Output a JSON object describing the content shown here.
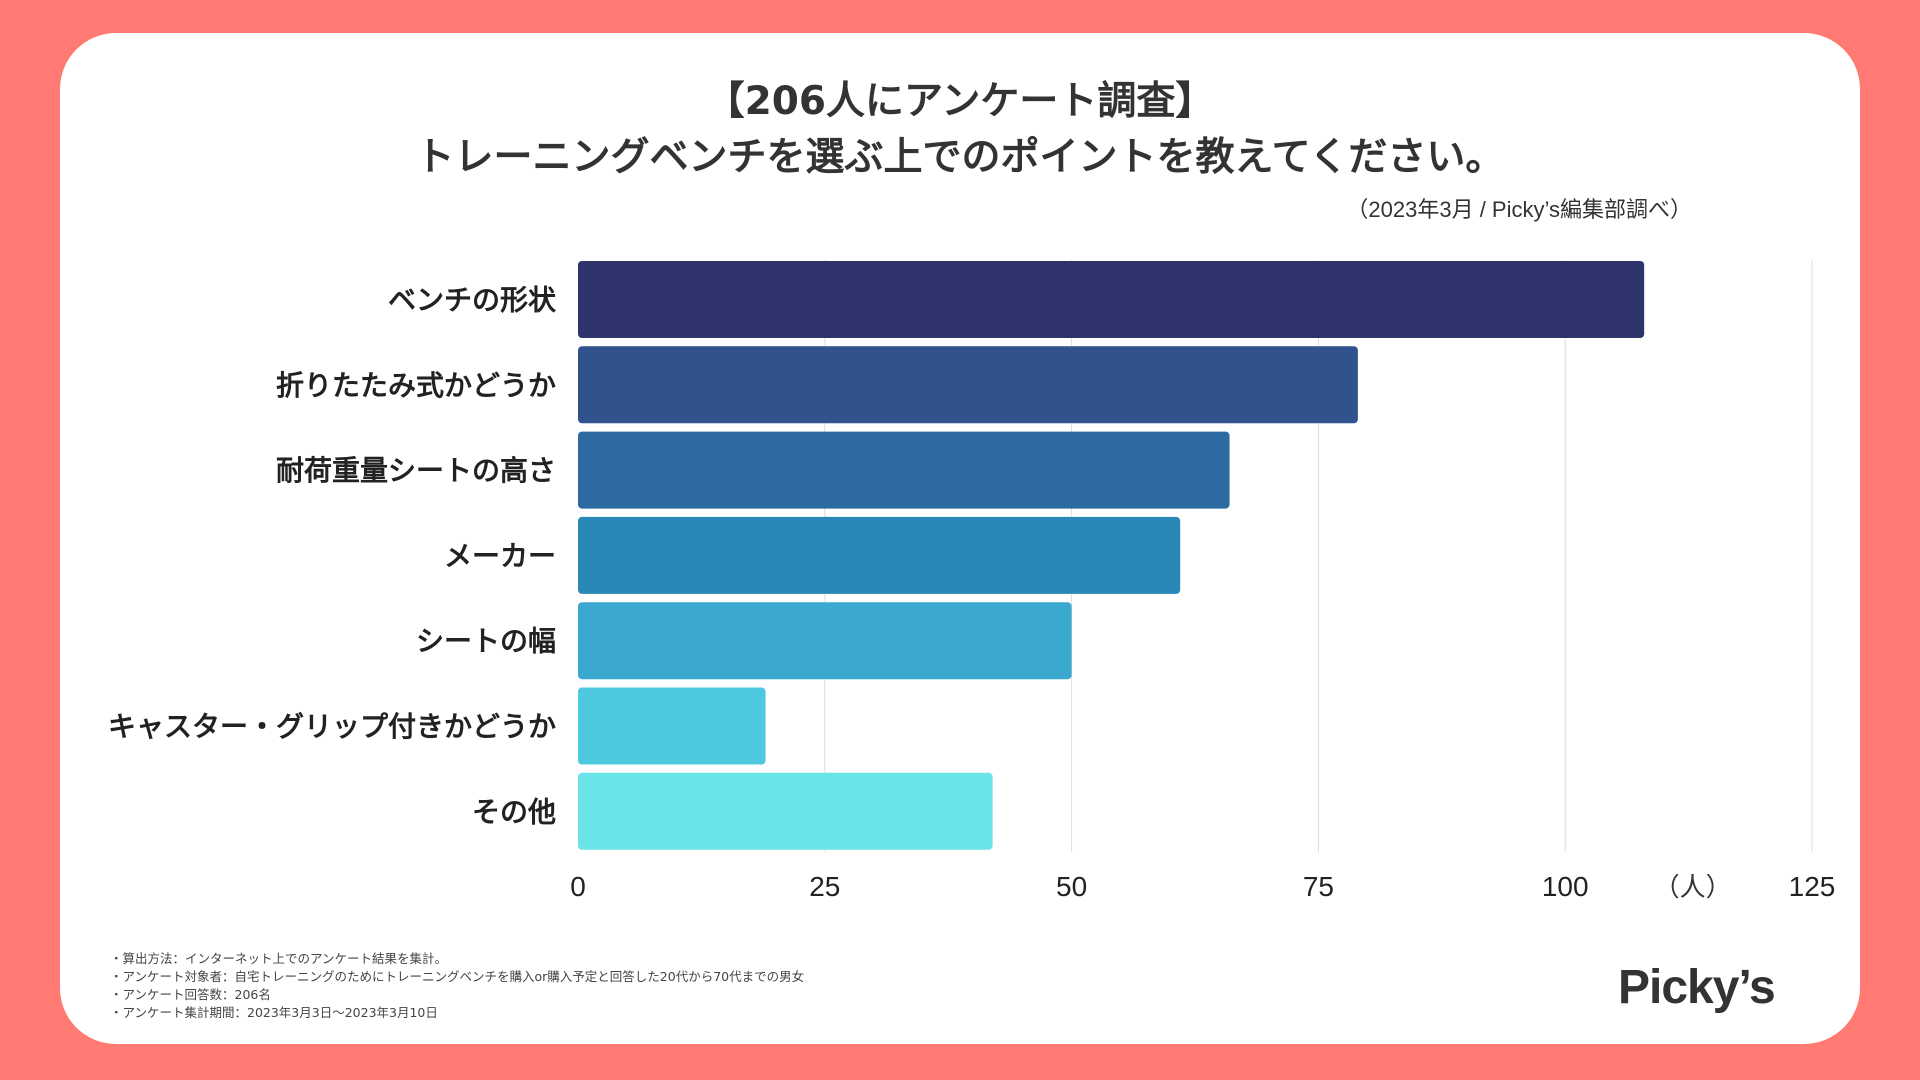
{
  "title_line1": "【206人にアンケート調査】",
  "title_line2": "トレーニングベンチを選ぶ上でのポイントを教えてください。",
  "source": "（2023年3月 / Picky’s編集部調べ）",
  "notes": [
    "・算出方法：インターネット上でのアンケート結果を集計。",
    "・アンケート対象者：自宅トレーニングのためにトレーニングベンチを購入or購入予定と回答した20代から70代までの男女",
    "・アンケート回答数：206名",
    "・アンケート集計期間：2023年3月3日〜2023年3月10日"
  ],
  "logo": "Picky’s",
  "colors": {
    "background": "#ff7a72",
    "bars": [
      "#2e336b",
      "#30538d",
      "#2d6aa2",
      "#2a88b8",
      "#3aa8cf",
      "#4ec8de",
      "#6ae4e8"
    ]
  },
  "chart_data": {
    "type": "bar",
    "orientation": "horizontal",
    "categories": [
      "ベンチの形状",
      "折りたたみ式かどうか",
      "耐荷重量シートの高さ",
      "メーカー",
      "シートの幅",
      "キャスター・グリップ付きかどうか",
      "その他"
    ],
    "values": [
      108,
      79,
      66,
      61,
      50,
      19,
      42
    ],
    "xlim": [
      0,
      125
    ],
    "xticks": [
      "0",
      "25",
      "50",
      "75",
      "100",
      "125"
    ],
    "xticks_values": [
      0,
      25,
      50,
      75,
      100,
      125
    ],
    "unit_label": "（人）",
    "grid": true
  }
}
